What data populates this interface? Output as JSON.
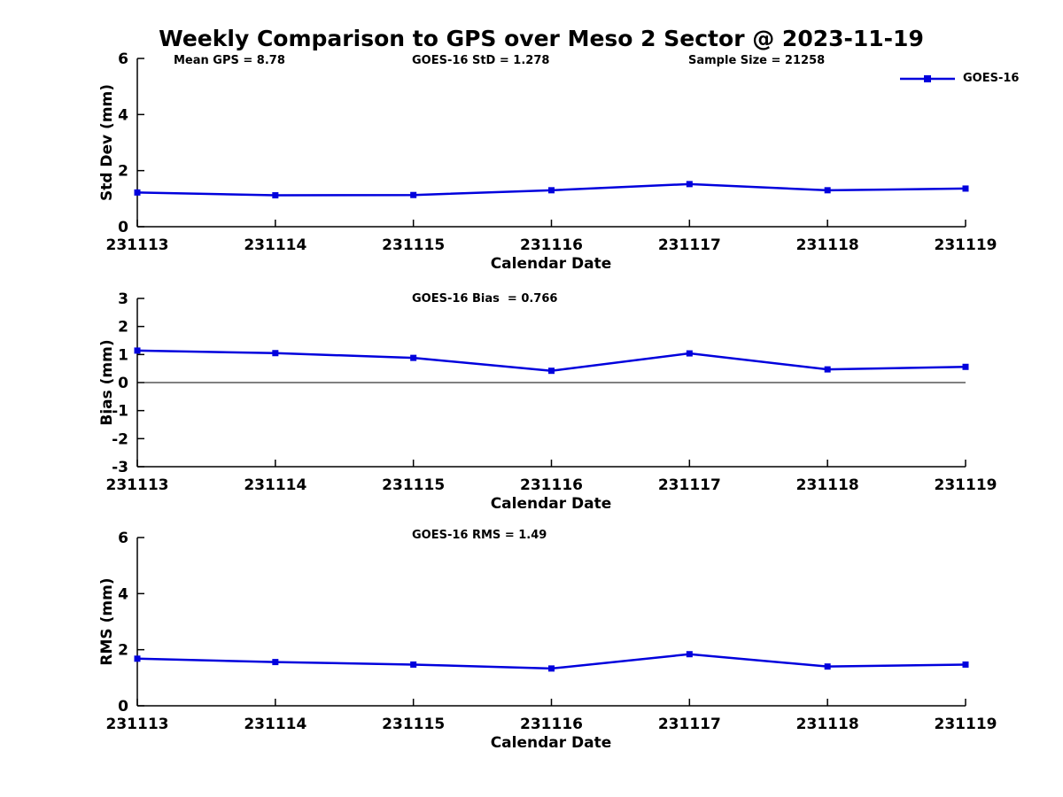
{
  "title": "Weekly Comparison to GPS over Meso 2 Sector @ 2023-11-19",
  "colors": {
    "series": "#0000dd",
    "axis": "#000000",
    "text": "#000000",
    "background": "#ffffff"
  },
  "legend": {
    "label": "GOES-16",
    "marker": "filled-square",
    "position": "top-right-outside"
  },
  "chart_data": [
    {
      "id": "std-dev",
      "type": "line",
      "xlabel": "Calendar Date",
      "ylabel": "Std Dev (mm)",
      "categories": [
        "231113",
        "231114",
        "231115",
        "231116",
        "231117",
        "231118",
        "231119"
      ],
      "series": [
        {
          "name": "GOES-16",
          "marker": "square",
          "values": [
            1.22,
            1.12,
            1.13,
            1.3,
            1.52,
            1.3,
            1.36
          ]
        }
      ],
      "ylim": [
        0,
        6
      ],
      "yticks": [
        0,
        2,
        4,
        6
      ],
      "grid": false,
      "zero_line": false,
      "annotations": [
        {
          "text": "Mean GPS = 8.78"
        },
        {
          "text": "GOES-16 StD = 1.278"
        },
        {
          "text": "Sample Size = 21258"
        }
      ]
    },
    {
      "id": "bias",
      "type": "line",
      "xlabel": "Calendar Date",
      "ylabel": "Bias (mm)",
      "categories": [
        "231113",
        "231114",
        "231115",
        "231116",
        "231117",
        "231118",
        "231119"
      ],
      "series": [
        {
          "name": "GOES-16",
          "marker": "square",
          "values": [
            1.14,
            1.05,
            0.88,
            0.42,
            1.04,
            0.47,
            0.56
          ]
        }
      ],
      "ylim": [
        -3,
        3
      ],
      "yticks": [
        -3,
        -2,
        -1,
        0,
        1,
        2,
        3
      ],
      "grid": false,
      "zero_line": true,
      "annotations": [
        {
          "text": "GOES-16 Bias  = 0.766"
        }
      ]
    },
    {
      "id": "rms",
      "type": "line",
      "xlabel": "Calendar Date",
      "ylabel": "RMS (mm)",
      "categories": [
        "231113",
        "231114",
        "231115",
        "231116",
        "231117",
        "231118",
        "231119"
      ],
      "series": [
        {
          "name": "GOES-16",
          "marker": "square",
          "values": [
            1.68,
            1.56,
            1.47,
            1.33,
            1.84,
            1.4,
            1.47
          ]
        }
      ],
      "ylim": [
        0,
        6
      ],
      "yticks": [
        0,
        2,
        4,
        6
      ],
      "grid": false,
      "zero_line": false,
      "annotations": [
        {
          "text": "GOES-16 RMS = 1.49"
        }
      ]
    }
  ]
}
